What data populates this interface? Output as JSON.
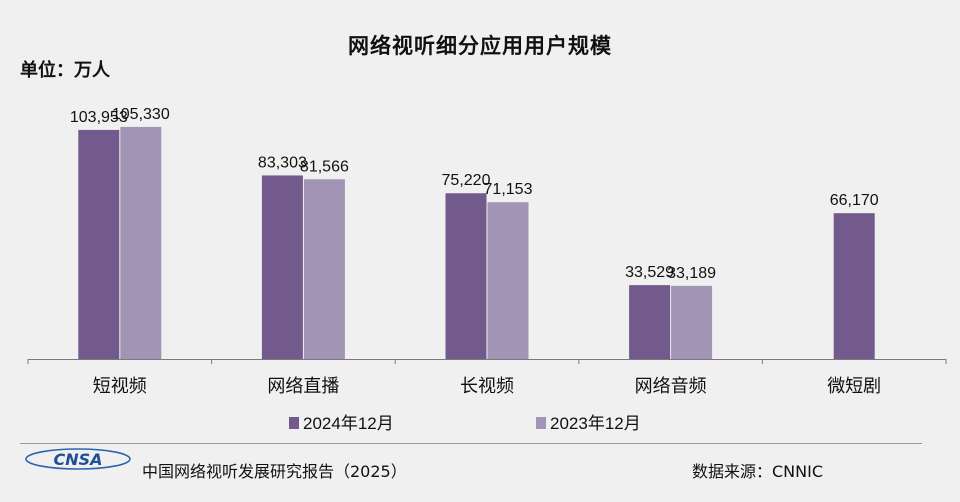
{
  "page": {
    "report_name": "中国网络视听发展研究报告（2025）",
    "source": "数据来源：CNNIC",
    "logo_text": "CNSA"
  },
  "chart_data": {
    "type": "bar",
    "title": "网络视听细分应用用户规模",
    "unit_label": "单位：万人",
    "categories": [
      "短视频",
      "网络直播",
      "长视频",
      "网络音频",
      "微短剧"
    ],
    "series": [
      {
        "name": "2024年12月",
        "color": "#735a8d",
        "values": [
          103953,
          83303,
          75220,
          33529,
          66170
        ],
        "labels": [
          "103,953",
          "83,303",
          "75,220",
          "33,529",
          "66,170"
        ]
      },
      {
        "name": "2023年12月",
        "color": "#a194b5",
        "values": [
          105330,
          81566,
          71153,
          33189,
          null
        ],
        "labels": [
          "105,330",
          "81,566",
          "71,153",
          "33,189",
          ""
        ]
      }
    ],
    "ylim": [
      0,
      113000
    ],
    "grid": false,
    "legend_position": "bottom"
  }
}
